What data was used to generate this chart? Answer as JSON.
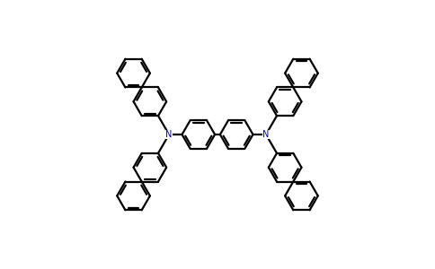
{
  "background_color": "#ffffff",
  "bond_color": "#000000",
  "nitrogen_color": "#0000cc",
  "lw": 1.6,
  "dbo": 0.05,
  "r": 0.38,
  "figsize": [
    4.84,
    3.0
  ],
  "dpi": 100
}
